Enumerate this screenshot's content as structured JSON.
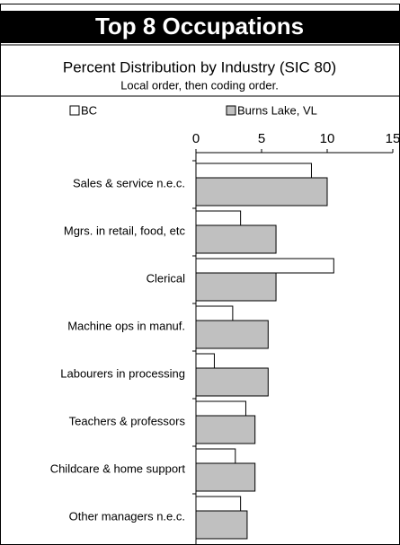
{
  "chart_data": {
    "type": "bar",
    "orientation": "horizontal",
    "title": "Top 8 Occupations",
    "subtitle": "Percent Distribution by Industry (SIC 80)",
    "note": "Local order, then coding order.",
    "categories": [
      "Sales & service  n.e.c.",
      "Mgrs. in retail, food, etc",
      "Clerical",
      "Machine ops in manuf.",
      "Labourers in processing",
      "Teachers & professors",
      "Childcare & home support",
      "Other managers n.e.c."
    ],
    "series": [
      {
        "name": "BC",
        "color": "#ffffff",
        "values": [
          8.8,
          3.4,
          10.5,
          2.8,
          1.4,
          3.8,
          3.0,
          3.4
        ]
      },
      {
        "name": "Burns Lake, VL",
        "color": "#c0c0c0",
        "values": [
          10.0,
          6.1,
          6.1,
          5.5,
          5.5,
          4.5,
          4.5,
          3.9
        ]
      }
    ],
    "xlim": [
      0,
      15
    ],
    "xticks": [
      0,
      5,
      10,
      15
    ],
    "legend": "top"
  }
}
